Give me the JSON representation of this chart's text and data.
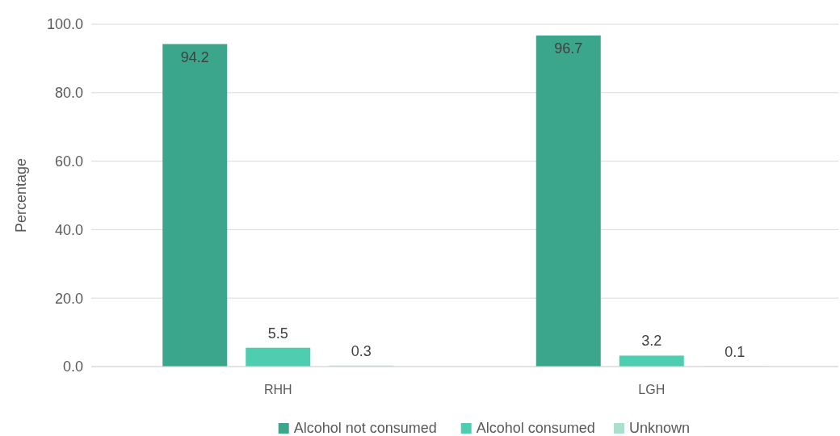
{
  "chart_data": {
    "type": "bar",
    "ylabel": "Percentage",
    "categories": [
      "RHH",
      "LGH"
    ],
    "series": [
      {
        "name": "Alcohol not consumed",
        "color": "#3ca68c",
        "values": [
          94.2,
          96.7
        ]
      },
      {
        "name": "Alcohol consumed",
        "color": "#4fcdb0",
        "values": [
          5.5,
          3.2
        ]
      },
      {
        "name": "Unknown",
        "color": "#a9dfcd",
        "values": [
          0.3,
          0.1
        ]
      }
    ],
    "ylim": [
      0,
      100
    ],
    "yticks": [
      {
        "value": 0,
        "label": "0.0"
      },
      {
        "value": 20,
        "label": "20.0"
      },
      {
        "value": 40,
        "label": "40.0"
      },
      {
        "value": 60,
        "label": "60.0"
      },
      {
        "value": 80,
        "label": "80.0"
      },
      {
        "value": 100,
        "label": "100.0"
      }
    ],
    "grid": "y",
    "legend": "bottom",
    "data_labels": true
  }
}
